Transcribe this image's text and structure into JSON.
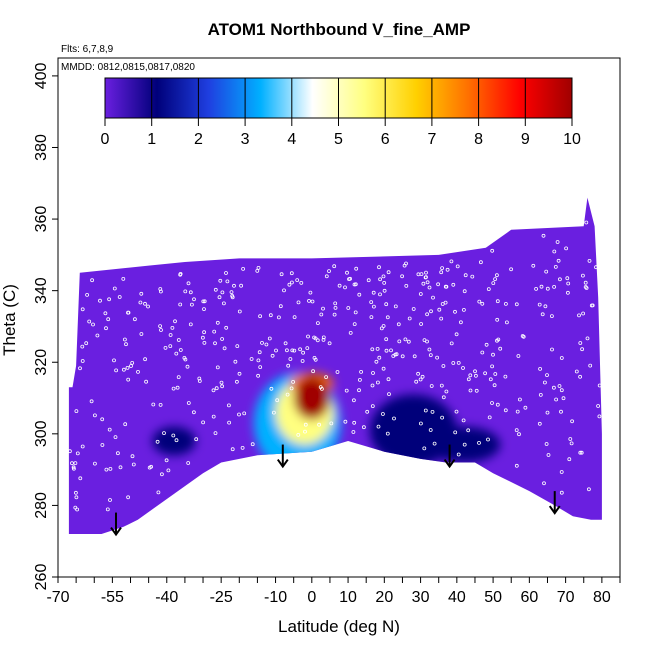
{
  "chart_data": {
    "type": "heatmap",
    "title": "ATOM1 Northbound V_fine_AMP",
    "annotations": [
      "Flts: 6,7,8,9",
      "MMDD: 0812,0815,0817,0820"
    ],
    "xlabel": "Latitude (deg N)",
    "ylabel": "Theta (C)",
    "xlim": [
      -70,
      85
    ],
    "ylim": [
      260,
      405
    ],
    "x_major_ticks": [
      -70,
      -55,
      -40,
      -25,
      -10,
      0,
      10,
      20,
      30,
      40,
      50,
      60,
      70,
      80
    ],
    "x_minor_step": 5,
    "y_ticks": [
      260,
      280,
      300,
      320,
      340,
      360,
      380,
      400
    ],
    "colorbar": {
      "range": [
        0,
        10
      ],
      "ticks": [
        0,
        1,
        2,
        3,
        4,
        5,
        6,
        7,
        8,
        9,
        10
      ],
      "colors": [
        "#6a1fe0",
        "#00007a",
        "#1f3fe0",
        "#00b0ff",
        "#ffffff",
        "#ffff80",
        "#ffd000",
        "#ff7000",
        "#ff0000",
        "#a00000"
      ]
    },
    "data_region": {
      "top_boundary": [
        [
          -67,
          313
        ],
        [
          -66,
          313
        ],
        [
          -65,
          319
        ],
        [
          -64,
          345
        ],
        [
          -45,
          347
        ],
        [
          -35,
          348
        ],
        [
          -20,
          349
        ],
        [
          0,
          349
        ],
        [
          35,
          350
        ],
        [
          48,
          352
        ],
        [
          55,
          357
        ],
        [
          75,
          358
        ],
        [
          76,
          366
        ],
        [
          78,
          358
        ],
        [
          79,
          338
        ],
        [
          80,
          300
        ]
      ],
      "bottom_boundary": [
        [
          -67,
          272
        ],
        [
          -58,
          272
        ],
        [
          -52,
          274
        ],
        [
          -48,
          276
        ],
        [
          -30,
          289
        ],
        [
          -25,
          292
        ],
        [
          -15,
          294
        ],
        [
          0,
          295
        ],
        [
          10,
          298
        ],
        [
          20,
          295
        ],
        [
          30,
          293
        ],
        [
          37,
          292
        ],
        [
          45,
          292
        ],
        [
          50,
          289
        ],
        [
          60,
          284
        ],
        [
          67,
          280
        ],
        [
          72,
          277
        ],
        [
          77,
          276
        ],
        [
          80,
          276
        ]
      ],
      "background_value": 0.3
    },
    "features": [
      {
        "label": "core",
        "x": 0,
        "y": 310,
        "rx": 5,
        "ry": 6,
        "value": 9.0
      },
      {
        "label": "upper core",
        "x": 0,
        "y": 314,
        "rx": 6,
        "ry": 3,
        "value": 7.5
      },
      {
        "label": "plume",
        "x": -2,
        "y": 306,
        "rx": 8,
        "ry": 9,
        "value": 5.0
      },
      {
        "label": "edge",
        "x": -4,
        "y": 303,
        "rx": 12,
        "ry": 14,
        "value": 3.0
      },
      {
        "label": "dark left",
        "x": -38,
        "y": 298,
        "rx": 6,
        "ry": 4,
        "value": 1.2
      },
      {
        "label": "dark mid",
        "x": 28,
        "y": 301,
        "rx": 12,
        "ry": 10,
        "value": 1.4
      },
      {
        "label": "dark right",
        "x": 42,
        "y": 297,
        "rx": 10,
        "ry": 5,
        "value": 1.1
      }
    ],
    "arrows": [
      [
        -54,
        278
      ],
      [
        -8,
        297
      ],
      [
        38,
        297
      ],
      [
        67,
        284
      ]
    ]
  }
}
